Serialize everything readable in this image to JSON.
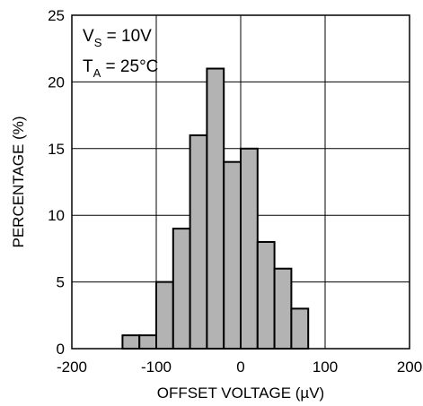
{
  "chart_data": {
    "type": "bar",
    "xlabel": "OFFSET VOLTAGE (µV)",
    "ylabel": "PERCENTAGE (%)",
    "xlim": [
      -200,
      200
    ],
    "ylim": [
      0,
      25
    ],
    "xticks": [
      -200,
      -100,
      0,
      100,
      200
    ],
    "yticks": [
      0,
      5,
      10,
      15,
      20,
      25
    ],
    "grid": true,
    "bin_width": 20,
    "bins": [
      {
        "x0": -140,
        "x1": -120,
        "value": 1
      },
      {
        "x0": -120,
        "x1": -100,
        "value": 1
      },
      {
        "x0": -100,
        "x1": -80,
        "value": 5
      },
      {
        "x0": -80,
        "x1": -60,
        "value": 9
      },
      {
        "x0": -60,
        "x1": -40,
        "value": 16
      },
      {
        "x0": -40,
        "x1": -20,
        "value": 21
      },
      {
        "x0": -20,
        "x1": 0,
        "value": 14
      },
      {
        "x0": 0,
        "x1": 20,
        "value": 15
      },
      {
        "x0": 20,
        "x1": 40,
        "value": 8
      },
      {
        "x0": 40,
        "x1": 60,
        "value": 6
      },
      {
        "x0": 60,
        "x1": 80,
        "value": 3
      }
    ],
    "annotations": [
      {
        "main": "V",
        "sub": "S",
        "rest": " = 10V"
      },
      {
        "main": "T",
        "sub": "A",
        "rest": " = 25°C"
      }
    ],
    "bar_fill": "#b3b3b3",
    "bar_stroke": "#000000"
  }
}
